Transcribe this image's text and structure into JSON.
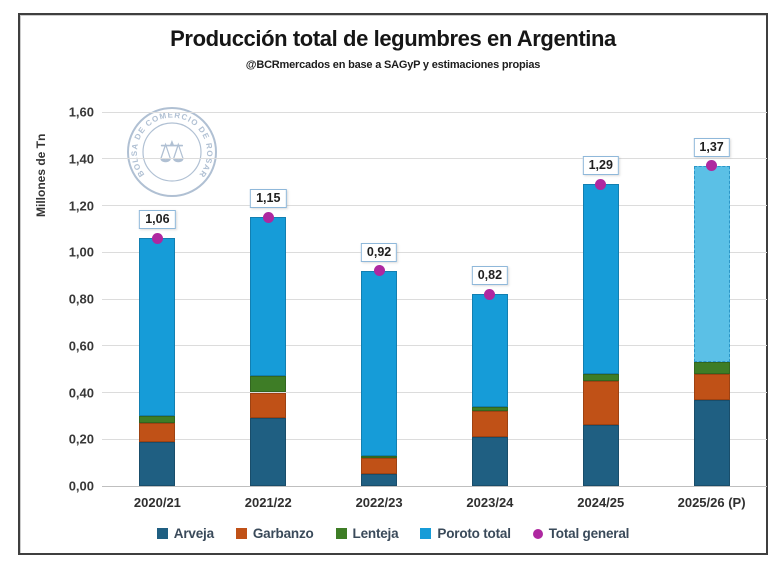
{
  "header": {
    "title": "Producción total de legumbres en Argentina",
    "subtitle": "@BCRmercados en base a SAGyP y estimaciones propias"
  },
  "watermark": {
    "text": "BOLSA DE COMERCIO DE ROSARIO",
    "color": "#a8bacf"
  },
  "chart_data": {
    "type": "bar",
    "stacked": true,
    "title": "Producción total de legumbres en Argentina",
    "subtitle": "@BCRmercados en base a SAGyP y estimaciones propias",
    "xlabel": "",
    "ylabel": "Millones de Tn",
    "ylim": [
      0,
      1.6
    ],
    "ytick_step": 0.2,
    "ytick_labels": [
      "0,00",
      "0,20",
      "0,40",
      "0,60",
      "0,80",
      "1,00",
      "1,20",
      "1,40",
      "1,60"
    ],
    "grid": true,
    "legend_position": "bottom",
    "categories": [
      "2020/21",
      "2021/22",
      "2022/23",
      "2023/24",
      "2024/25",
      "2025/26 (P)"
    ],
    "series": [
      {
        "name": "Arveja",
        "color": "#1f5f82",
        "values": [
          0.19,
          0.29,
          0.05,
          0.21,
          0.26,
          0.37
        ]
      },
      {
        "name": "Garbanzo",
        "color": "#c05117",
        "values": [
          0.08,
          0.11,
          0.07,
          0.11,
          0.19,
          0.11
        ]
      },
      {
        "name": "Lenteja",
        "color": "#3e7d26",
        "values": [
          0.03,
          0.07,
          0.01,
          0.02,
          0.03,
          0.05
        ]
      },
      {
        "name": "Poroto total",
        "color": "#169cd8",
        "values": [
          0.76,
          0.68,
          0.79,
          0.48,
          0.81,
          0.84
        ]
      }
    ],
    "totals": {
      "name": "Total general",
      "color": "#ae28a0",
      "values": [
        1.06,
        1.15,
        0.92,
        0.82,
        1.29,
        1.37
      ],
      "labels": [
        "1,06",
        "1,15",
        "0,92",
        "0,82",
        "1,29",
        "1,37"
      ]
    },
    "projection": {
      "category_index": 5,
      "series_name": "Poroto total",
      "fill_color": "#5bc0e6",
      "note": "última columna proyectada con relleno claro y borde discontinuo"
    },
    "colors": {
      "gridline": "#dcdcdc",
      "axis_line": "#bfbfbf",
      "label_box_border": "#8fb8da",
      "frame_border": "#3f3f3f"
    }
  }
}
